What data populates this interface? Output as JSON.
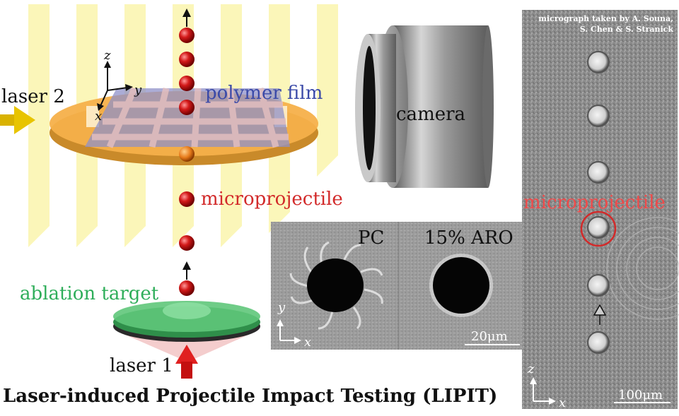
{
  "title": "Laser-induced Projectile Impact Testing (LIPIT)",
  "labels": {
    "laser2": "laser 2",
    "laser1": "laser 1",
    "polymer_film": "polymer film",
    "microprojectile": "microprojectile",
    "ablation_target": "ablation target",
    "camera": "camera"
  },
  "axes": {
    "z": "z",
    "y": "y",
    "x": "x"
  },
  "inset": {
    "left_label": "PC",
    "right_label": "15% ARO",
    "scale": "20μm",
    "axis_y": "y",
    "axis_x": "x"
  },
  "micrograph": {
    "credit_line1": "micrograph taken by A. Souna,",
    "credit_line2": "S. Chen & S. Stranick",
    "label": "microprojectile",
    "scale": "100μm",
    "axis_z": "z",
    "axis_x": "x"
  },
  "colors": {
    "laser_beam": "#fbf6b2",
    "substrate": "#f5b04a",
    "film": "#8f90c8",
    "projectile": "#cc1111",
    "target": "#3aaa5a",
    "label_red": "#d22a2a",
    "label_blue": "#3b4aa8",
    "label_green": "#2fae5a"
  }
}
